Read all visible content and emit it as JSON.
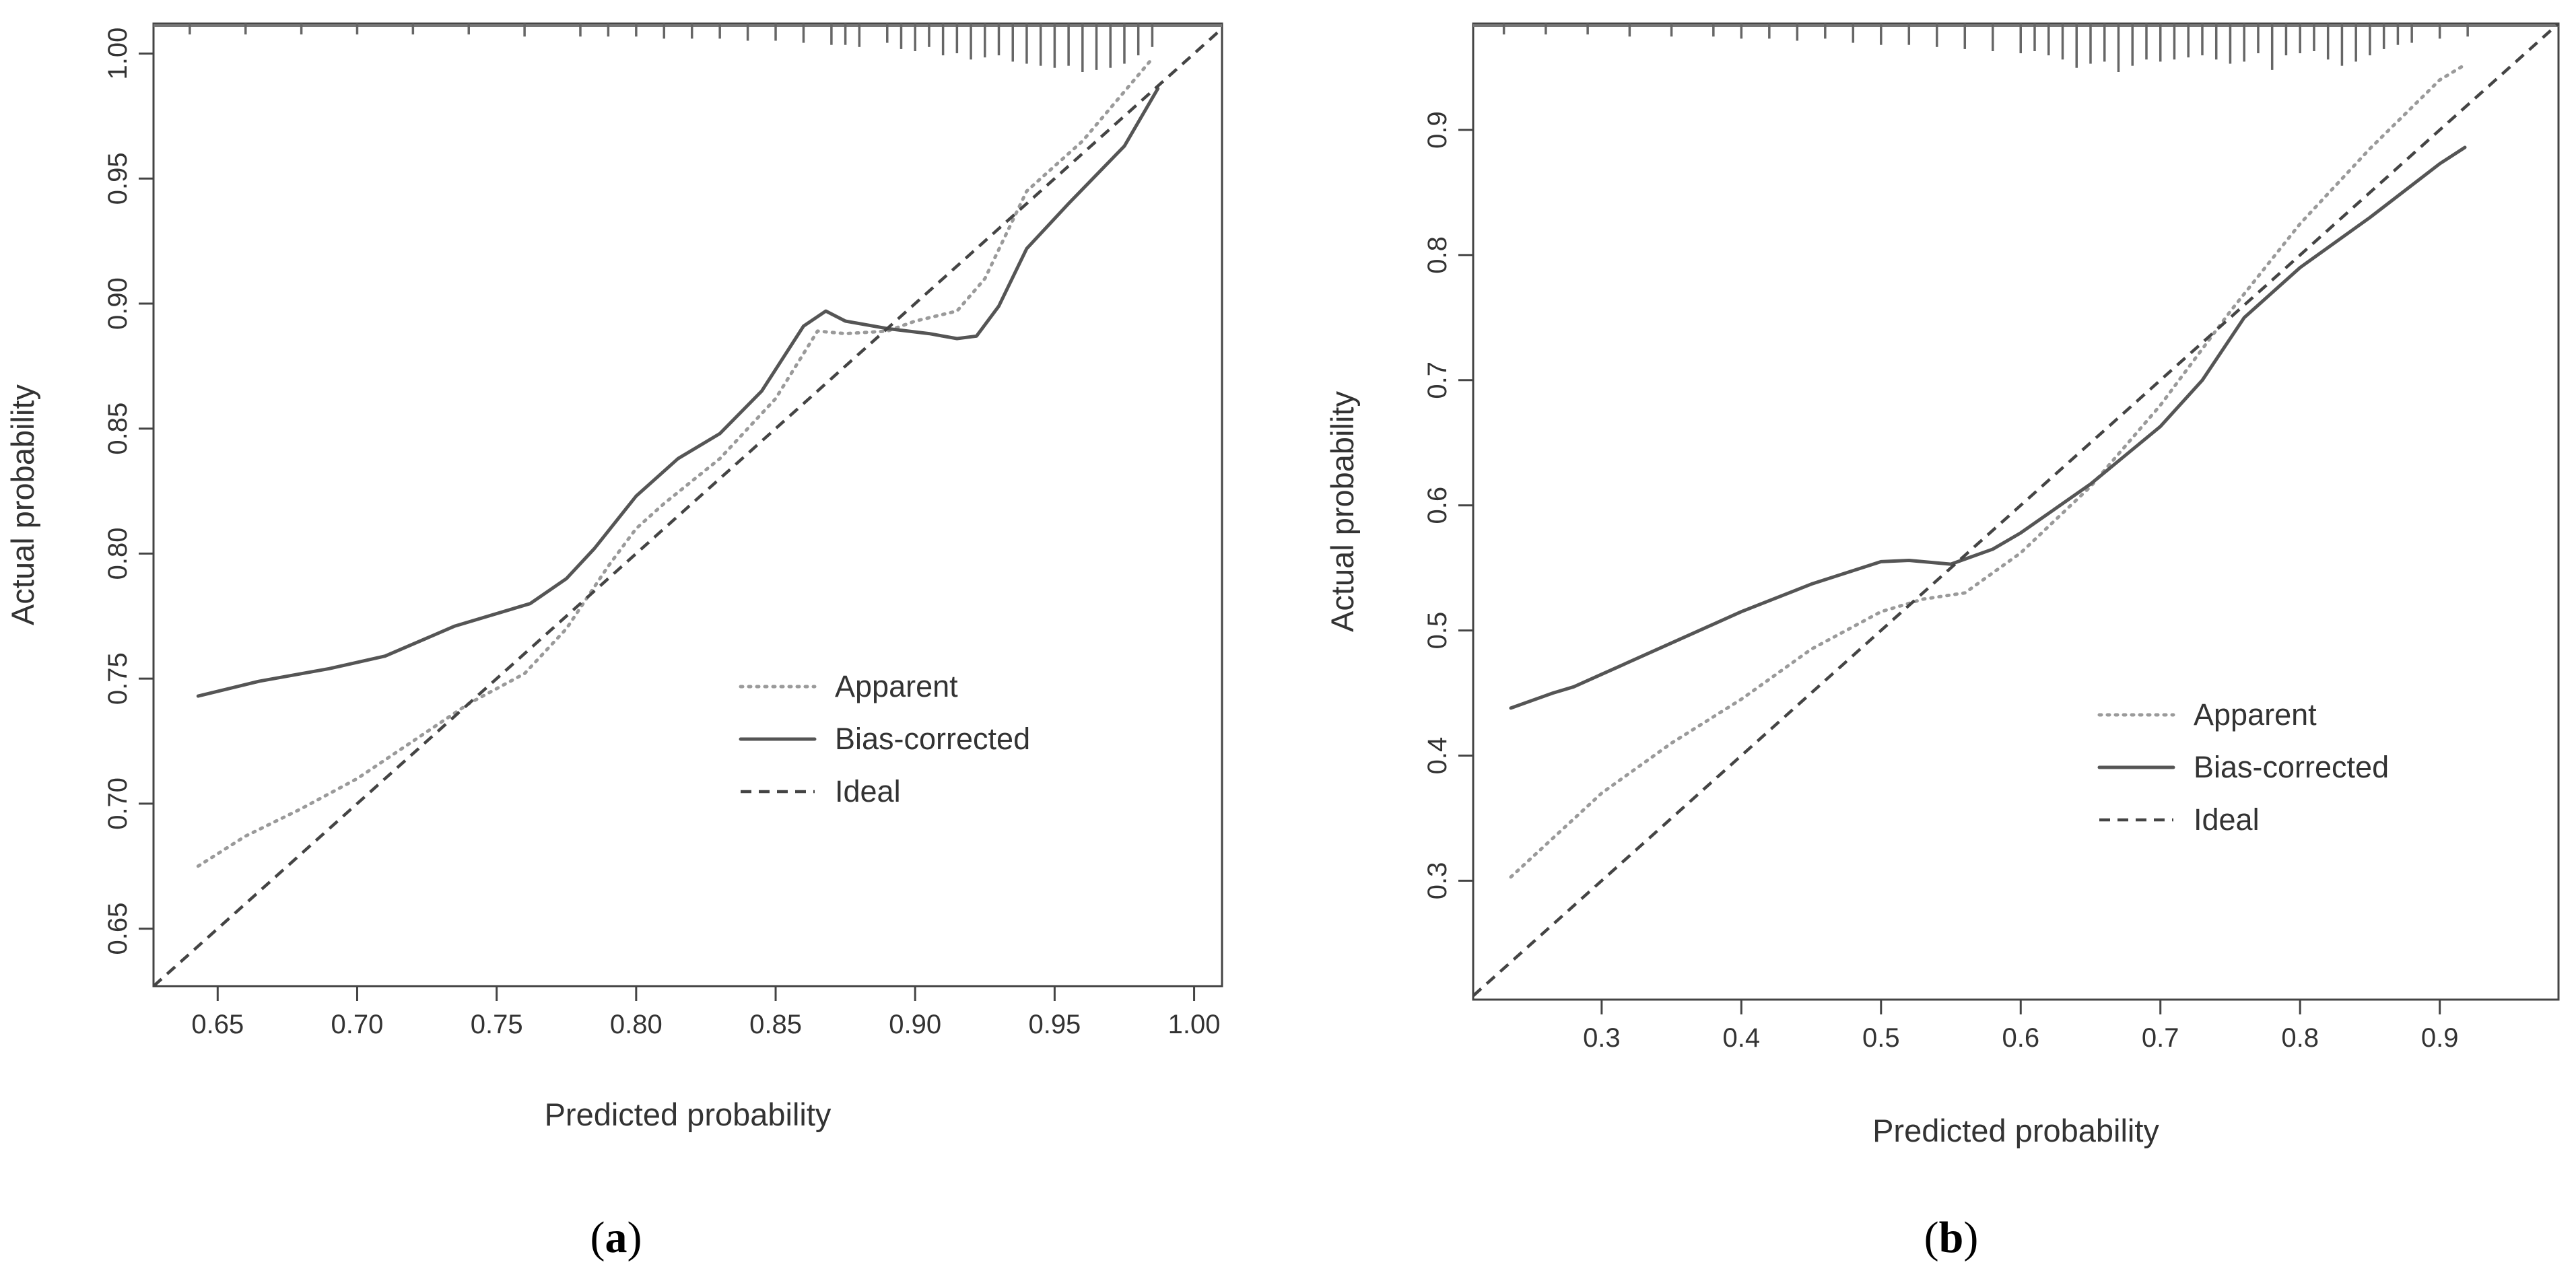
{
  "chart_data": [
    {
      "type": "line",
      "panel_label": "a",
      "xlabel": "Predicted probability",
      "ylabel": "Actual probability",
      "xlim": [
        0.627,
        1.01
      ],
      "ylim": [
        0.627,
        1.012
      ],
      "xticks": [
        "0.65",
        "0.70",
        "0.75",
        "0.80",
        "0.85",
        "0.90",
        "0.95",
        "1.00"
      ],
      "yticks": [
        "0.65",
        "0.70",
        "0.75",
        "0.80",
        "0.85",
        "0.90",
        "0.95",
        "1.00"
      ],
      "legend": {
        "position": "bottom-right",
        "entries": [
          "Apparent",
          "Bias-corrected",
          "Ideal"
        ]
      },
      "series": [
        {
          "name": "Apparent",
          "style": "dotted",
          "x": [
            0.643,
            0.66,
            0.68,
            0.7,
            0.72,
            0.74,
            0.76,
            0.775,
            0.79,
            0.8,
            0.81,
            0.83,
            0.85,
            0.865,
            0.875,
            0.89,
            0.9,
            0.915,
            0.925,
            0.94,
            0.96,
            0.985
          ],
          "y": [
            0.675,
            0.687,
            0.698,
            0.71,
            0.725,
            0.74,
            0.752,
            0.77,
            0.795,
            0.81,
            0.82,
            0.838,
            0.862,
            0.889,
            0.888,
            0.889,
            0.893,
            0.897,
            0.91,
            0.945,
            0.965,
            0.998
          ]
        },
        {
          "name": "Bias-corrected",
          "style": "solid",
          "x": [
            0.643,
            0.665,
            0.69,
            0.71,
            0.735,
            0.762,
            0.775,
            0.785,
            0.8,
            0.815,
            0.83,
            0.845,
            0.86,
            0.868,
            0.875,
            0.89,
            0.905,
            0.915,
            0.922,
            0.93,
            0.94,
            0.955,
            0.975,
            0.987
          ],
          "y": [
            0.743,
            0.749,
            0.754,
            0.759,
            0.771,
            0.78,
            0.79,
            0.802,
            0.823,
            0.838,
            0.848,
            0.865,
            0.891,
            0.897,
            0.893,
            0.89,
            0.888,
            0.886,
            0.887,
            0.899,
            0.922,
            0.94,
            0.963,
            0.986
          ]
        },
        {
          "name": "Ideal",
          "style": "dashed",
          "x": [
            0.627,
            1.01
          ],
          "y": [
            0.627,
            1.01
          ]
        }
      ],
      "rug": [
        0.64,
        0.66,
        0.68,
        0.7,
        0.72,
        0.74,
        0.76,
        0.78,
        0.79,
        0.8,
        0.81,
        0.82,
        0.83,
        0.84,
        0.85,
        0.86,
        0.87,
        0.875,
        0.88,
        0.89,
        0.895,
        0.9,
        0.905,
        0.91,
        0.915,
        0.92,
        0.925,
        0.93,
        0.935,
        0.94,
        0.945,
        0.95,
        0.955,
        0.96,
        0.965,
        0.97,
        0.975,
        0.98,
        0.985
      ],
      "rug_weight": [
        0.1,
        0.1,
        0.1,
        0.1,
        0.1,
        0.1,
        0.15,
        0.15,
        0.15,
        0.15,
        0.2,
        0.2,
        0.2,
        0.25,
        0.25,
        0.3,
        0.35,
        0.35,
        0.4,
        0.3,
        0.45,
        0.5,
        0.4,
        0.6,
        0.55,
        0.7,
        0.65,
        0.6,
        0.75,
        0.8,
        0.85,
        0.9,
        0.85,
        1.0,
        0.95,
        0.9,
        0.8,
        0.6,
        0.4
      ]
    },
    {
      "type": "line",
      "panel_label": "b",
      "xlabel": "Predicted probability",
      "ylabel": "Actual probability",
      "xlim": [
        0.208,
        0.985
      ],
      "ylim": [
        0.205,
        0.985
      ],
      "xticks": [
        "0.3",
        "0.4",
        "0.5",
        "0.6",
        "0.7",
        "0.8",
        "0.9"
      ],
      "yticks": [
        "0.3",
        "0.4",
        "0.5",
        "0.6",
        "0.7",
        "0.8",
        "0.9"
      ],
      "legend": {
        "position": "bottom-right",
        "entries": [
          "Apparent",
          "Bias-corrected",
          "Ideal"
        ]
      },
      "series": [
        {
          "name": "Apparent",
          "style": "dotted",
          "x": [
            0.235,
            0.3,
            0.35,
            0.4,
            0.45,
            0.5,
            0.53,
            0.56,
            0.6,
            0.65,
            0.7,
            0.75,
            0.8,
            0.85,
            0.9,
            0.918
          ],
          "y": [
            0.303,
            0.37,
            0.41,
            0.445,
            0.485,
            0.515,
            0.525,
            0.53,
            0.562,
            0.615,
            0.68,
            0.755,
            0.825,
            0.885,
            0.94,
            0.952
          ]
        },
        {
          "name": "Bias-corrected",
          "style": "solid",
          "x": [
            0.235,
            0.265,
            0.28,
            0.3,
            0.35,
            0.4,
            0.45,
            0.5,
            0.52,
            0.55,
            0.58,
            0.6,
            0.65,
            0.7,
            0.73,
            0.76,
            0.8,
            0.85,
            0.9,
            0.918
          ],
          "y": [
            0.438,
            0.45,
            0.455,
            0.465,
            0.49,
            0.515,
            0.537,
            0.555,
            0.556,
            0.553,
            0.565,
            0.578,
            0.617,
            0.663,
            0.7,
            0.75,
            0.79,
            0.83,
            0.873,
            0.886
          ]
        },
        {
          "name": "Ideal",
          "style": "dashed",
          "x": [
            0.208,
            0.985
          ],
          "y": [
            0.208,
            0.985
          ]
        }
      ],
      "rug": [
        0.23,
        0.26,
        0.29,
        0.32,
        0.35,
        0.38,
        0.4,
        0.42,
        0.44,
        0.46,
        0.48,
        0.5,
        0.52,
        0.54,
        0.56,
        0.58,
        0.6,
        0.61,
        0.62,
        0.63,
        0.64,
        0.65,
        0.66,
        0.67,
        0.68,
        0.69,
        0.7,
        0.71,
        0.72,
        0.73,
        0.74,
        0.75,
        0.76,
        0.77,
        0.78,
        0.79,
        0.8,
        0.81,
        0.82,
        0.83,
        0.84,
        0.85,
        0.86,
        0.87,
        0.88,
        0.9,
        0.92
      ],
      "rug_weight": [
        0.1,
        0.1,
        0.1,
        0.15,
        0.15,
        0.15,
        0.2,
        0.2,
        0.25,
        0.2,
        0.3,
        0.35,
        0.35,
        0.4,
        0.45,
        0.5,
        0.55,
        0.5,
        0.6,
        0.7,
        0.9,
        0.8,
        0.75,
        1.0,
        0.85,
        0.7,
        0.75,
        0.7,
        0.65,
        0.6,
        0.7,
        0.8,
        0.75,
        0.55,
        0.95,
        0.6,
        0.55,
        0.5,
        0.7,
        0.85,
        0.75,
        0.6,
        0.45,
        0.35,
        0.3,
        0.2,
        0.15
      ]
    }
  ]
}
